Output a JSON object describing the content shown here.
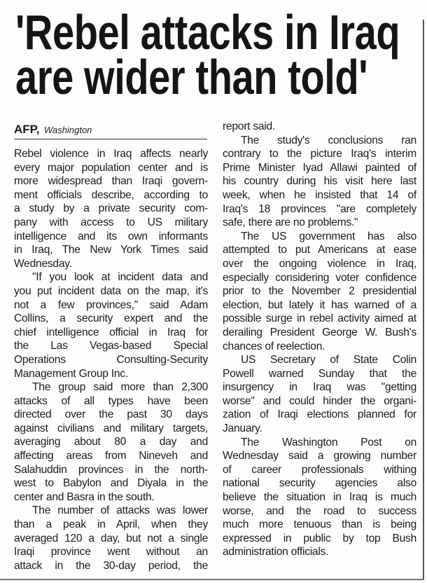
{
  "headline": {
    "lines": [
      "'Rebel attacks in Iraq",
      "are wider than told'"
    ]
  },
  "dateline": {
    "agency": "AFP,",
    "place": "Washington"
  },
  "columns": [
    {
      "paragraphs": [
        {
          "indent": false,
          "lines": [
            "Rebel violence in Iraq affects nearly",
            "every major population center and is",
            "more widespread than Iraqi govern-",
            "ment officials describe, according to",
            "a study by a private security com-",
            "pany with access to US military",
            "intelligence and its own informants",
            "in Iraq, The New York Times said",
            "Wednesday."
          ]
        },
        {
          "indent": true,
          "lines": [
            "\"If you look at incident data and",
            "you put incident data on the map, it's",
            "not a few provinces,\" said Adam",
            "Collins, a security expert and the",
            "chief intelligence official in Iraq for",
            "the Las Vegas-based Special",
            "Operations Consulting-Security",
            "Management Group Inc."
          ]
        },
        {
          "indent": true,
          "lines": [
            "The group said more than 2,300",
            "attacks of all types have been",
            "directed over the past 30 days",
            "against civilians and military targets,",
            "averaging about 80 a day and",
            "affecting areas from Nineveh and",
            "Salahuddin provinces in the north-",
            "west to Babylon and Diyala in the",
            "center and Basra in the south."
          ]
        },
        {
          "indent": true,
          "continues": true,
          "lines": [
            "The number of attacks was lower",
            "than a peak in April, when they",
            "averaged 120 a day, but not a single",
            "Iraqi province went without an",
            "attack in the 30-day period, the"
          ]
        }
      ]
    },
    {
      "paragraphs": [
        {
          "indent": false,
          "lines": [
            "report said."
          ]
        },
        {
          "indent": true,
          "lines": [
            "The study's conclusions ran",
            "contrary to the picture Iraq's interim",
            "Prime Minister Iyad Allawi painted of",
            "his country during his visit here last",
            "week, when he insisted that 14 of",
            "Iraq's 18 provinces \"are completely",
            "safe, there are no problems.\""
          ]
        },
        {
          "indent": true,
          "lines": [
            "The US government has also",
            "attempted to put Americans at ease",
            "over the ongoing violence in Iraq,",
            "especially considering voter confidence",
            "prior to the November 2 presidential",
            "election, but lately it has warned of a",
            "possible surge in rebel activity aimed at",
            "derailing President George W. Bush's",
            "chances of reelection."
          ]
        },
        {
          "indent": true,
          "lines": [
            "US Secretary of State Colin",
            "Powell warned Sunday that the",
            "insurgency in Iraq was \"getting",
            "worse\" and could hinder the organi-",
            "zation of Iraqi elections planned for",
            "January."
          ]
        },
        {
          "indent": true,
          "lines": [
            "The Washington Post on",
            "Wednesday said a growing number",
            "of career professionals withing",
            "national security agencies also",
            "believe the situation in Iraq is much",
            "worse, and the road to success",
            "much more tenuous than is being",
            "expressed in public by top Bush",
            "administration officials."
          ]
        }
      ]
    }
  ]
}
